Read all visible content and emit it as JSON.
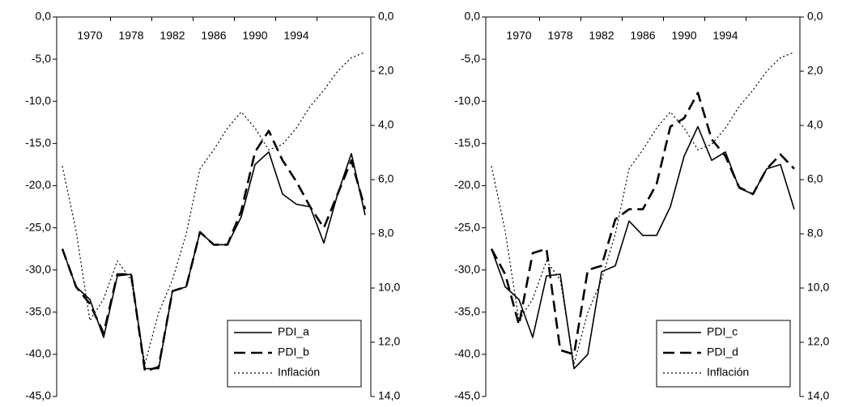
{
  "chart_data": [
    {
      "type": "line",
      "categories": [
        null,
        null,
        "1970",
        null,
        null,
        "1978",
        null,
        null,
        "1982",
        null,
        null,
        "1986",
        null,
        null,
        "1990",
        null,
        null,
        "1994",
        null,
        null,
        null,
        null,
        null
      ],
      "ylim": [
        -45,
        0
      ],
      "yticks": [
        {
          "value": 0,
          "label": "0,0"
        },
        {
          "value": -5,
          "label": "-5,0"
        },
        {
          "value": -10,
          "label": "-10,0"
        },
        {
          "value": -15,
          "label": "-15,0"
        },
        {
          "value": -20,
          "label": "-20,0"
        },
        {
          "value": -25,
          "label": "-25,0"
        },
        {
          "value": -30,
          "label": "-30,0"
        },
        {
          "value": -35,
          "label": "-35,0"
        },
        {
          "value": -40,
          "label": "-40,0"
        },
        {
          "value": -45,
          "label": "-45,0"
        }
      ],
      "y2lim": [
        0,
        14
      ],
      "y2_inverted": true,
      "y2ticks": [
        {
          "value": 0,
          "label": "0,0"
        },
        {
          "value": 2,
          "label": "2,0"
        },
        {
          "value": 4,
          "label": "4,0"
        },
        {
          "value": 6,
          "label": "6,0"
        },
        {
          "value": 8,
          "label": "8,0"
        },
        {
          "value": 10,
          "label": "10,0"
        },
        {
          "value": 12,
          "label": "12,0"
        },
        {
          "value": 14,
          "label": "14,0"
        }
      ],
      "legend": "lower right",
      "series": [
        {
          "name": "PDI_a",
          "color": "#000000",
          "style": "solid",
          "values": [
            -27.5,
            -32,
            -33.5,
            -38,
            -30.7,
            -30.5,
            -41.7,
            -41.7,
            -32.5,
            -32,
            -25.5,
            -27,
            -27,
            -23.7,
            -17.5,
            -16,
            -21,
            -22.2,
            -22.5,
            -26.8,
            -21,
            -16.2,
            -23.5
          ]
        },
        {
          "name": "PDI_b",
          "color": "#000000",
          "style": "dashed",
          "values": [
            -27.5,
            -32,
            -34,
            -37.5,
            -30.5,
            -30.5,
            -42,
            -41.5,
            -32.5,
            -32,
            -25.5,
            -27,
            -27,
            -23,
            -16,
            -13.5,
            -17,
            -19.5,
            -22.5,
            -25,
            -21,
            -17,
            -22.8
          ]
        },
        {
          "name": "Inflación",
          "color": "#000000",
          "style": "dotted",
          "axis": "y2",
          "values": [
            5.5,
            7.9,
            11.2,
            10.4,
            9.0,
            9.7,
            12.8,
            10.9,
            9.7,
            8.0,
            5.6,
            4.9,
            4.1,
            3.5,
            4.1,
            4.9,
            4.7,
            4.1,
            3.3,
            2.7,
            2.0,
            1.5,
            1.3
          ]
        }
      ]
    },
    {
      "type": "line",
      "categories": [
        null,
        null,
        "1970",
        null,
        null,
        "1978",
        null,
        null,
        "1982",
        null,
        null,
        "1986",
        null,
        null,
        "1990",
        null,
        null,
        "1994",
        null,
        null,
        null,
        null,
        null
      ],
      "ylim": [
        -45,
        0
      ],
      "yticks": [
        {
          "value": 0,
          "label": "0,0"
        },
        {
          "value": -5,
          "label": "-5,0"
        },
        {
          "value": -10,
          "label": "-10,0"
        },
        {
          "value": -15,
          "label": "-15,0"
        },
        {
          "value": -20,
          "label": "-20,0"
        },
        {
          "value": -25,
          "label": "-25,0"
        },
        {
          "value": -30,
          "label": "-30,0"
        },
        {
          "value": -35,
          "label": "-35,0"
        },
        {
          "value": -40,
          "label": "-40,0"
        },
        {
          "value": -45,
          "label": "-45,0"
        }
      ],
      "y2lim": [
        0,
        14
      ],
      "y2_inverted": true,
      "y2ticks": [
        {
          "value": 0,
          "label": "0,0"
        },
        {
          "value": 2,
          "label": "2,0"
        },
        {
          "value": 4,
          "label": "4,0"
        },
        {
          "value": 6,
          "label": "6,0"
        },
        {
          "value": 8,
          "label": "8,0"
        },
        {
          "value": 10,
          "label": "10,0"
        },
        {
          "value": 12,
          "label": "12,0"
        },
        {
          "value": 14,
          "label": "14,0"
        }
      ],
      "legend": "lower right",
      "series": [
        {
          "name": "PDI_c",
          "color": "#000000",
          "style": "solid",
          "values": [
            -27.5,
            -32,
            -33.5,
            -38,
            -30.7,
            -30.5,
            -41.7,
            -40,
            -30.2,
            -29.5,
            -24.2,
            -25.9,
            -25.9,
            -22.5,
            -16.5,
            -13,
            -17,
            -16,
            -20.3,
            -21,
            -18,
            -17.5,
            -22.8
          ]
        },
        {
          "name": "PDI_d",
          "color": "#000000",
          "style": "dashed",
          "values": [
            -27.5,
            -30.5,
            -36.5,
            -28,
            -27.5,
            -39.5,
            -40,
            -30,
            -29.5,
            -24,
            -22.8,
            -22.8,
            -19.8,
            -13,
            -12,
            -9,
            -14.5,
            -16.5,
            -20.2,
            -21,
            -18,
            -16.3,
            -18
          ]
        },
        {
          "name": "Inflación",
          "color": "#000000",
          "style": "dotted",
          "axis": "y2",
          "values": [
            5.5,
            7.9,
            11.2,
            10.4,
            9.0,
            9.7,
            12.8,
            10.9,
            9.7,
            8.0,
            5.6,
            4.9,
            4.1,
            3.5,
            4.1,
            4.9,
            4.7,
            4.1,
            3.3,
            2.7,
            2.0,
            1.5,
            1.3
          ]
        }
      ]
    }
  ]
}
